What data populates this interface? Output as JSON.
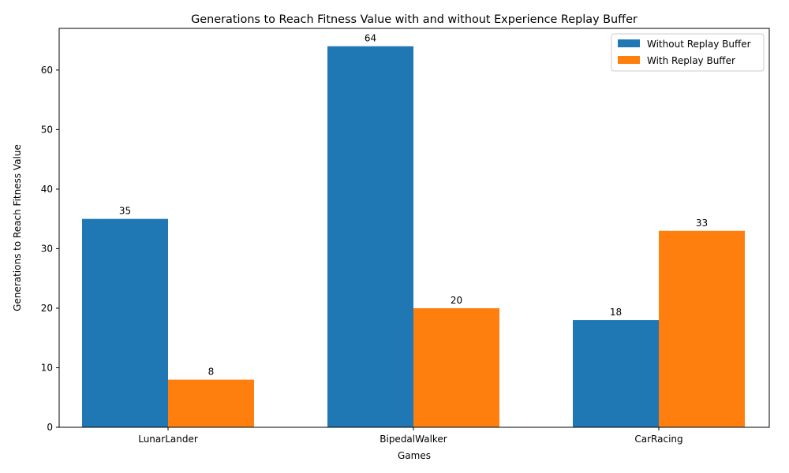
{
  "chart_data": {
    "type": "bar",
    "title": "Generations to Reach Fitness Value with and without Experience Replay Buffer",
    "xlabel": "Games",
    "ylabel": "Generations to Reach Fitness Value",
    "categories": [
      "LunarLander",
      "BipedalWalker",
      "CarRacing"
    ],
    "series": [
      {
        "name": "Without Replay Buffer",
        "values": [
          35,
          64,
          18
        ],
        "color": "#1f77b4"
      },
      {
        "name": "With Replay Buffer",
        "values": [
          8,
          20,
          33
        ],
        "color": "#ff7f0e"
      }
    ],
    "ylim": [
      0,
      67
    ],
    "yticks": [
      0,
      10,
      20,
      30,
      40,
      50,
      60
    ],
    "grid": false,
    "legend_position": "top-right",
    "data_labels": true
  }
}
